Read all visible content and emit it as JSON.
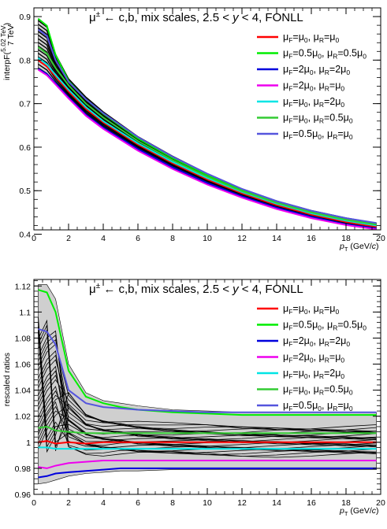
{
  "chart_data": [
    {
      "type": "line",
      "title": "μ± ← c,b, mix scales, 2.5 < y < 4, FONLL",
      "xlabel": "p_T (GeV/c)",
      "ylabel": "interpF(5.02 TeV / 7 TeV)",
      "xlim": [
        0,
        20
      ],
      "ylim": [
        0.41,
        0.92
      ],
      "x_ticks": [
        "0",
        "2",
        "4",
        "6",
        "8",
        "10",
        "12",
        "14",
        "16",
        "18",
        "20"
      ],
      "y_ticks": [
        "0.4",
        "0.5",
        "0.6",
        "0.7",
        "0.8",
        "0.9"
      ],
      "legend_position": "top-right",
      "band": {
        "x": [
          0.25,
          0.75,
          1.25,
          2,
          3,
          4,
          6,
          8,
          10,
          12,
          14,
          16,
          18,
          19.75
        ],
        "upper": [
          0.895,
          0.88,
          0.815,
          0.758,
          0.716,
          0.682,
          0.625,
          0.58,
          0.54,
          0.505,
          0.477,
          0.455,
          0.438,
          0.426
        ],
        "lower": [
          0.778,
          0.765,
          0.744,
          0.712,
          0.672,
          0.642,
          0.592,
          0.55,
          0.514,
          0.484,
          0.458,
          0.437,
          0.421,
          0.411
        ]
      },
      "series": [
        {
          "name": "μF=μ0, μR=μ0",
          "color": "#ff0000",
          "x": [
            0.25,
            0.75,
            1.25,
            2,
            3,
            4,
            6,
            8,
            10,
            12,
            14,
            16,
            18,
            19.75
          ],
          "y": [
            0.8,
            0.785,
            0.762,
            0.728,
            0.688,
            0.657,
            0.606,
            0.563,
            0.526,
            0.494,
            0.467,
            0.445,
            0.428,
            0.417
          ]
        },
        {
          "name": "μF=0.5μ0, μR=0.5μ0",
          "color": "#00ee00",
          "x": [
            0.25,
            0.75,
            1.25,
            2,
            3,
            4,
            6,
            8,
            10,
            12,
            14,
            16,
            18,
            19.75
          ],
          "y": [
            0.895,
            0.879,
            0.812,
            0.752,
            0.71,
            0.677,
            0.62,
            0.575,
            0.536,
            0.502,
            0.475,
            0.453,
            0.436,
            0.425
          ]
        },
        {
          "name": "μF=2μ0, μR=2μ0",
          "color": "#0000dd",
          "x": [
            0.25,
            0.75,
            1.25,
            2,
            3,
            4,
            6,
            8,
            10,
            12,
            14,
            16,
            18,
            19.75
          ],
          "y": [
            0.78,
            0.768,
            0.747,
            0.715,
            0.675,
            0.645,
            0.596,
            0.554,
            0.518,
            0.487,
            0.461,
            0.44,
            0.423,
            0.413
          ]
        },
        {
          "name": "μF=2μ0, μR=μ0",
          "color": "#ee00ee",
          "x": [
            0.25,
            0.75,
            1.25,
            2,
            3,
            4,
            6,
            8,
            10,
            12,
            14,
            16,
            18,
            19.75
          ],
          "y": [
            0.778,
            0.765,
            0.744,
            0.712,
            0.672,
            0.642,
            0.592,
            0.55,
            0.514,
            0.484,
            0.458,
            0.437,
            0.421,
            0.411
          ]
        },
        {
          "name": "μF=μ0, μR=2μ0",
          "color": "#00e5e5",
          "x": [
            0.25,
            0.75,
            1.25,
            2,
            3,
            4,
            6,
            8,
            10,
            12,
            14,
            16,
            18,
            19.75
          ],
          "y": [
            0.805,
            0.79,
            0.766,
            0.732,
            0.692,
            0.66,
            0.609,
            0.566,
            0.529,
            0.497,
            0.47,
            0.448,
            0.431,
            0.42
          ]
        },
        {
          "name": "μF=μ0, μR=0.5μ0",
          "color": "#33cc33",
          "x": [
            0.25,
            0.75,
            1.25,
            2,
            3,
            4,
            6,
            8,
            10,
            12,
            14,
            16,
            18,
            19.75
          ],
          "y": [
            0.83,
            0.815,
            0.782,
            0.742,
            0.7,
            0.668,
            0.614,
            0.57,
            0.532,
            0.499,
            0.472,
            0.45,
            0.433,
            0.422
          ]
        },
        {
          "name": "μF=0.5μ0, μR=μ0",
          "color": "#5555dd",
          "x": [
            0.25,
            0.75,
            1.25,
            2,
            3,
            4,
            6,
            8,
            10,
            12,
            14,
            16,
            18,
            19.75
          ],
          "y": [
            0.87,
            0.856,
            0.8,
            0.75,
            0.71,
            0.678,
            0.623,
            0.578,
            0.539,
            0.504,
            0.476,
            0.454,
            0.437,
            0.426
          ]
        }
      ]
    },
    {
      "type": "line",
      "title": "μ± ← c,b, mix scales, 2.5 < y < 4, FONLL",
      "xlabel": "p_T (GeV/c)",
      "ylabel": "rescaled ratios",
      "xlim": [
        0,
        20
      ],
      "ylim": [
        0.96,
        1.125
      ],
      "x_ticks": [
        "0",
        "2",
        "4",
        "6",
        "8",
        "10",
        "12",
        "14",
        "16",
        "18",
        "20"
      ],
      "y_ticks": [
        "0.96",
        "0.98",
        "1",
        "1.02",
        "1.04",
        "1.06",
        "1.08",
        "1.1",
        "1.12"
      ],
      "legend_position": "top-right",
      "band": {
        "x": [
          0.25,
          0.75,
          1.25,
          2,
          3,
          4,
          5,
          6,
          8,
          10,
          12,
          14,
          16,
          18,
          19.75
        ],
        "upper": [
          1.121,
          1.121,
          1.11,
          1.06,
          1.038,
          1.032,
          1.03,
          1.028,
          1.025,
          1.024,
          1.023,
          1.023,
          1.023,
          1.023,
          1.023
        ],
        "lower": [
          0.968,
          0.969,
          0.971,
          0.974,
          0.976,
          0.977,
          0.978,
          0.978,
          0.979,
          0.979,
          0.979,
          0.979,
          0.979,
          0.979,
          0.979
        ]
      },
      "series": [
        {
          "name": "μF=μ0, μR=μ0",
          "color": "#ff0000",
          "x": [
            0.25,
            0.75,
            1.25,
            2,
            3,
            4,
            5,
            6,
            8,
            10,
            12,
            14,
            16,
            18,
            19.75
          ],
          "y": [
            1.0,
            1.001,
            0.999,
            1.0,
            0.999,
            1.0,
            1.0,
            1.0,
            1.0,
            1.0,
            1.0,
            1.0,
            1.0,
            1.0,
            1.0
          ]
        },
        {
          "name": "μF=0.5μ0, μR=0.5μ0",
          "color": "#00ee00",
          "x": [
            0.25,
            0.75,
            1.25,
            2,
            3,
            4,
            5,
            6,
            8,
            10,
            12,
            14,
            16,
            18,
            19.75
          ],
          "y": [
            1.117,
            1.115,
            1.1,
            1.055,
            1.035,
            1.03,
            1.027,
            1.025,
            1.023,
            1.022,
            1.021,
            1.021,
            1.021,
            1.021,
            1.021
          ]
        },
        {
          "name": "μF=2μ0, μR=2μ0",
          "color": "#0000dd",
          "x": [
            0.25,
            0.75,
            1.25,
            2,
            3,
            4,
            5,
            6,
            8,
            10,
            12,
            14,
            16,
            18,
            19.75
          ],
          "y": [
            0.973,
            0.974,
            0.976,
            0.977,
            0.978,
            0.979,
            0.98,
            0.98,
            0.98,
            0.98,
            0.98,
            0.98,
            0.98,
            0.98,
            0.98
          ]
        },
        {
          "name": "μF=2μ0, μR=μ0",
          "color": "#ee00ee",
          "x": [
            0.25,
            0.75,
            1.25,
            2,
            3,
            4,
            5,
            6,
            8,
            10,
            12,
            14,
            16,
            18,
            19.75
          ],
          "y": [
            0.981,
            0.98,
            0.982,
            0.984,
            0.985,
            0.986,
            0.986,
            0.986,
            0.986,
            0.986,
            0.986,
            0.986,
            0.986,
            0.986,
            0.986
          ]
        },
        {
          "name": "μF=μ0, μR=2μ0",
          "color": "#00e5e5",
          "x": [
            0.25,
            0.75,
            1.25,
            2,
            3,
            4,
            5,
            6,
            8,
            10,
            12,
            14,
            16,
            18,
            19.75
          ],
          "y": [
            0.996,
            0.996,
            0.995,
            0.995,
            0.995,
            0.995,
            0.995,
            0.995,
            0.995,
            0.995,
            0.995,
            0.995,
            0.995,
            0.995,
            0.995
          ]
        },
        {
          "name": "μF=μ0, μR=0.5μ0",
          "color": "#33cc33",
          "x": [
            0.25,
            0.75,
            1.25,
            2,
            3,
            4,
            5,
            6,
            8,
            10,
            12,
            14,
            16,
            18,
            19.75
          ],
          "y": [
            1.011,
            1.012,
            1.009,
            1.008,
            1.007,
            1.007,
            1.007,
            1.007,
            1.007,
            1.007,
            1.007,
            1.007,
            1.007,
            1.007,
            1.007
          ]
        },
        {
          "name": "μF=0.5μ0, μR=μ0",
          "color": "#5555dd",
          "x": [
            0.25,
            0.75,
            1.25,
            2,
            3,
            4,
            5,
            6,
            8,
            10,
            12,
            14,
            16,
            18,
            19.75
          ],
          "y": [
            1.087,
            1.085,
            1.075,
            1.04,
            1.03,
            1.027,
            1.026,
            1.025,
            1.024,
            1.023,
            1.023,
            1.023,
            1.023,
            1.023,
            1.023
          ]
        }
      ]
    }
  ],
  "legend": {
    "entries": [
      {
        "color": "#ff0000",
        "lines": [
          "μ",
          "F",
          "=μ",
          "0",
          ",    μ",
          "R",
          "=μ",
          "0"
        ]
      },
      {
        "color": "#00ee00",
        "lines": [
          "μ",
          "F",
          "=0.5μ",
          "0",
          ", μ",
          "R",
          "=0.5μ",
          "0"
        ]
      },
      {
        "color": "#0000dd",
        "lines": [
          "μ",
          "F",
          "=2μ",
          "0",
          ",   μ",
          "R",
          "=2μ",
          "0"
        ]
      },
      {
        "color": "#ee00ee",
        "lines": [
          "μ",
          "F",
          "=2μ",
          "0",
          ",   μ",
          "R",
          "=μ",
          "0"
        ]
      },
      {
        "color": "#00e5e5",
        "lines": [
          "μ",
          "F",
          "=μ",
          "0",
          ",    μ",
          "R",
          "=2μ",
          "0"
        ]
      },
      {
        "color": "#33cc33",
        "lines": [
          "μ",
          "F",
          "=μ",
          "0",
          ",    μ",
          "R",
          "=0.5μ",
          "0"
        ]
      },
      {
        "color": "#5555dd",
        "lines": [
          "μ",
          "F",
          "=0.5μ",
          "0",
          ", μ",
          "R",
          "=μ",
          "0"
        ]
      }
    ]
  },
  "labels": {
    "top_ylabel": "interpF(",
    "top_ylabel_num": "5.02 TeV",
    "top_ylabel_den": "7 TeV",
    "top_ylabel_close": ")",
    "bottom_ylabel": "rescaled ratios",
    "xlabel_p": "p",
    "xlabel_sub": "T",
    "xlabel_unit": " (GeV/",
    "xlabel_c": "c",
    "xlabel_close": ")",
    "title_pre": "μ",
    "title_sup": "±",
    "title_mid": " ← c,b, mix scales, 2.5 < ",
    "title_y": "y",
    "title_post": " < 4, FONLL"
  }
}
